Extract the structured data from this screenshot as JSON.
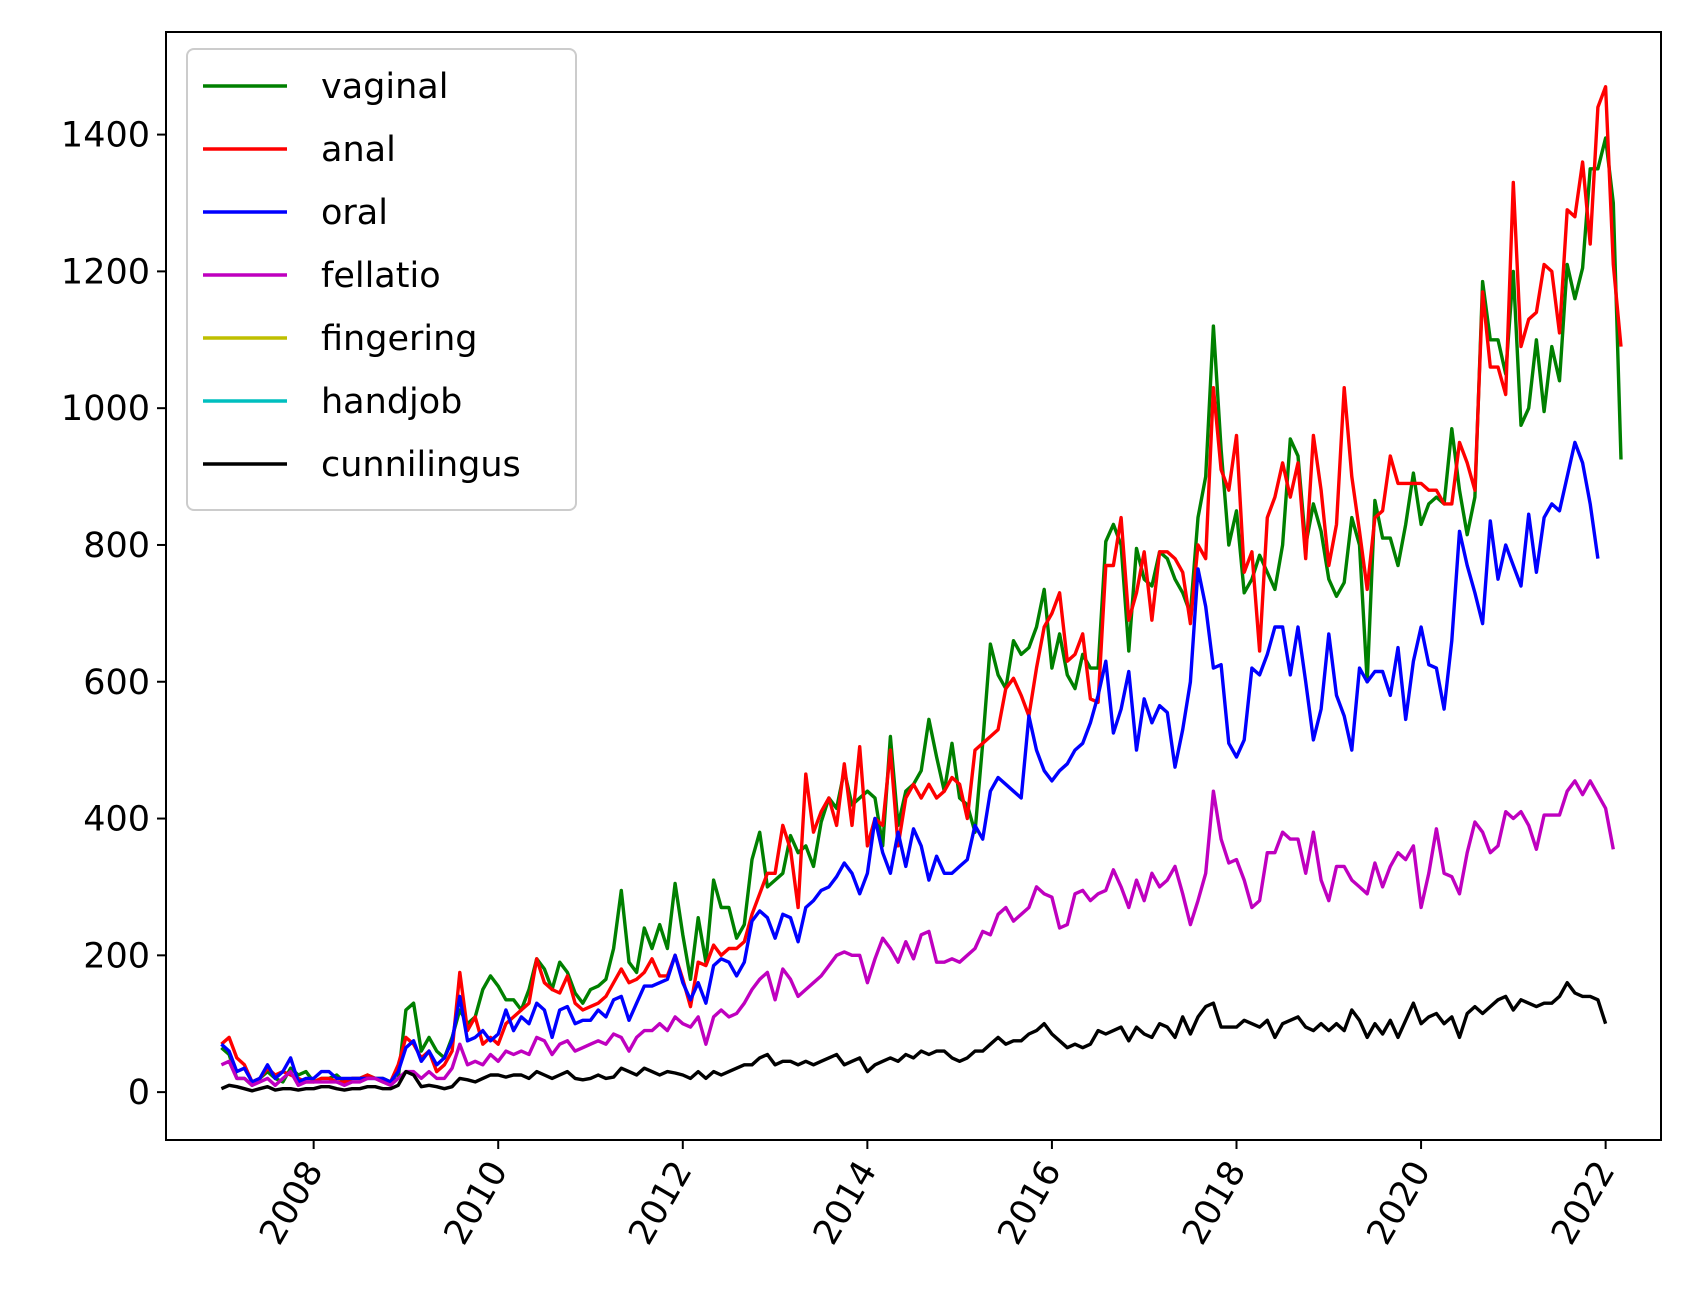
{
  "chart_data": {
    "type": "line",
    "title": "",
    "xlabel": "",
    "ylabel": "",
    "x_start": "2007-01",
    "x_step": "month",
    "xlim": [
      2006.4,
      2022.6
    ],
    "ylim": [
      -70,
      1550
    ],
    "grid": false,
    "legend_position": "top-left",
    "x_ticks": [
      2008,
      2010,
      2012,
      2014,
      2016,
      2018,
      2020,
      2022
    ],
    "x_tick_labels": [
      "2008",
      "2010",
      "2012",
      "2014",
      "2016",
      "2018",
      "2020",
      "2022"
    ],
    "y_ticks": [
      0,
      200,
      400,
      600,
      800,
      1000,
      1200,
      1400
    ],
    "y_tick_labels": [
      "0",
      "200",
      "400",
      "600",
      "800",
      "1000",
      "1200",
      "1400"
    ],
    "series": [
      {
        "name": "vaginal",
        "color": "#008000",
        "values": [
          65,
          55,
          20,
          20,
          10,
          20,
          30,
          20,
          15,
          35,
          25,
          30,
          15,
          20,
          20,
          25,
          15,
          20,
          20,
          25,
          20,
          20,
          15,
          20,
          120,
          130,
          60,
          80,
          60,
          50,
          80,
          120,
          100,
          110,
          150,
          170,
          155,
          135,
          135,
          120,
          150,
          195,
          180,
          150,
          190,
          175,
          145,
          130,
          150,
          155,
          165,
          210,
          295,
          190,
          175,
          240,
          210,
          245,
          210,
          305,
          230,
          165,
          255,
          190,
          310,
          270,
          270,
          225,
          245,
          340,
          380,
          300,
          310,
          320,
          375,
          350,
          360,
          330,
          395,
          430,
          415,
          470,
          420,
          430,
          440,
          430,
          360,
          520,
          390,
          440,
          450,
          470,
          545,
          490,
          440,
          510,
          430,
          420,
          380,
          510,
          655,
          610,
          590,
          660,
          640,
          650,
          680,
          735,
          620,
          670,
          610,
          590,
          640,
          620,
          620,
          805,
          830,
          800,
          645,
          795,
          750,
          740,
          790,
          780,
          750,
          730,
          700,
          840,
          900,
          1120,
          940,
          800,
          850,
          730,
          750,
          785,
          760,
          735,
          800,
          955,
          930,
          800,
          860,
          820,
          750,
          725,
          745,
          840,
          800,
          600,
          865,
          810,
          810,
          770,
          830,
          905,
          830,
          860,
          870,
          860,
          970,
          880,
          815,
          870,
          1185,
          1100,
          1100,
          1050,
          1200,
          975,
          1000,
          1100,
          995,
          1090,
          1040,
          1210,
          1160,
          1205,
          1350,
          1350,
          1395,
          1300,
          925
        ]
      },
      {
        "name": "anal",
        "color": "#ff0000",
        "values": [
          70,
          80,
          50,
          40,
          15,
          20,
          35,
          25,
          30,
          25,
          20,
          15,
          15,
          20,
          20,
          15,
          15,
          20,
          20,
          25,
          20,
          15,
          15,
          40,
          80,
          70,
          50,
          60,
          30,
          40,
          60,
          175,
          90,
          110,
          70,
          80,
          70,
          100,
          110,
          120,
          130,
          195,
          160,
          150,
          145,
          170,
          130,
          120,
          125,
          130,
          140,
          160,
          180,
          160,
          165,
          175,
          195,
          170,
          170,
          200,
          165,
          125,
          190,
          185,
          215,
          200,
          210,
          210,
          220,
          260,
          290,
          320,
          320,
          390,
          355,
          270,
          465,
          380,
          410,
          430,
          390,
          480,
          390,
          505,
          360,
          400,
          390,
          500,
          360,
          430,
          450,
          430,
          450,
          430,
          440,
          460,
          450,
          400,
          500,
          510,
          520,
          530,
          590,
          605,
          580,
          550,
          620,
          680,
          700,
          730,
          630,
          640,
          670,
          575,
          570,
          770,
          770,
          840,
          690,
          730,
          790,
          690,
          790,
          790,
          780,
          760,
          685,
          800,
          780,
          1030,
          910,
          880,
          960,
          760,
          790,
          645,
          840,
          870,
          920,
          870,
          920,
          780,
          960,
          880,
          770,
          830,
          1030,
          900,
          820,
          735,
          840,
          850,
          930,
          890,
          890,
          890,
          890,
          880,
          880,
          860,
          860,
          950,
          920,
          880,
          1170,
          1060,
          1060,
          1020,
          1330,
          1090,
          1130,
          1140,
          1210,
          1200,
          1110,
          1290,
          1280,
          1360,
          1240,
          1440,
          1470,
          1210,
          1090
        ]
      },
      {
        "name": "oral",
        "color": "#0000ff",
        "values": [
          70,
          60,
          30,
          35,
          15,
          20,
          40,
          20,
          30,
          50,
          15,
          20,
          20,
          30,
          30,
          20,
          20,
          20,
          20,
          20,
          20,
          20,
          15,
          30,
          65,
          75,
          45,
          60,
          40,
          50,
          75,
          140,
          75,
          80,
          90,
          75,
          85,
          120,
          90,
          110,
          100,
          130,
          120,
          80,
          120,
          125,
          100,
          105,
          105,
          120,
          110,
          135,
          140,
          105,
          130,
          155,
          155,
          160,
          165,
          200,
          160,
          135,
          160,
          130,
          185,
          195,
          190,
          170,
          190,
          250,
          265,
          255,
          225,
          260,
          255,
          220,
          270,
          280,
          295,
          300,
          315,
          335,
          320,
          290,
          320,
          400,
          350,
          320,
          380,
          330,
          385,
          360,
          310,
          345,
          320,
          320,
          330,
          340,
          390,
          370,
          440,
          460,
          450,
          440,
          430,
          550,
          500,
          470,
          455,
          470,
          480,
          500,
          510,
          540,
          580,
          630,
          525,
          560,
          615,
          500,
          575,
          540,
          565,
          555,
          475,
          530,
          600,
          765,
          710,
          620,
          625,
          510,
          490,
          515,
          620,
          610,
          640,
          680,
          680,
          610,
          680,
          600,
          515,
          560,
          670,
          580,
          550,
          500,
          620,
          600,
          615,
          615,
          580,
          650,
          545,
          630,
          680,
          625,
          620,
          560,
          660,
          820,
          770,
          730,
          685,
          835,
          750,
          800,
          770,
          740,
          845,
          760,
          840,
          860,
          850,
          900,
          950,
          920,
          860,
          780
        ]
      },
      {
        "name": "fellatio",
        "color": "#bf00bf",
        "values": [
          40,
          45,
          20,
          20,
          10,
          15,
          20,
          10,
          20,
          30,
          10,
          15,
          15,
          15,
          15,
          15,
          10,
          15,
          15,
          20,
          20,
          15,
          10,
          20,
          30,
          30,
          20,
          30,
          20,
          20,
          35,
          70,
          40,
          45,
          40,
          55,
          45,
          60,
          55,
          60,
          55,
          80,
          75,
          55,
          70,
          75,
          60,
          65,
          70,
          75,
          70,
          85,
          80,
          60,
          80,
          90,
          90,
          100,
          90,
          110,
          100,
          95,
          110,
          70,
          110,
          120,
          110,
          115,
          130,
          150,
          165,
          175,
          135,
          180,
          165,
          140,
          150,
          160,
          170,
          185,
          200,
          205,
          200,
          200,
          160,
          195,
          225,
          210,
          190,
          220,
          195,
          230,
          235,
          190,
          190,
          195,
          190,
          200,
          210,
          235,
          230,
          260,
          270,
          250,
          260,
          270,
          300,
          290,
          285,
          240,
          245,
          290,
          295,
          280,
          290,
          295,
          325,
          300,
          270,
          310,
          280,
          320,
          300,
          310,
          330,
          290,
          245,
          280,
          320,
          440,
          370,
          335,
          340,
          310,
          270,
          280,
          350,
          350,
          380,
          370,
          370,
          320,
          380,
          310,
          280,
          330,
          330,
          310,
          300,
          290,
          335,
          300,
          330,
          350,
          340,
          360,
          270,
          320,
          385,
          320,
          315,
          290,
          350,
          395,
          380,
          350,
          360,
          410,
          400,
          410,
          390,
          355,
          405,
          405,
          405,
          440,
          455,
          435,
          455,
          435,
          415,
          355
        ]
      },
      {
        "name": "fingering",
        "color": "#bfbf00",
        "values": []
      },
      {
        "name": "handjob",
        "color": "#00bfbf",
        "values": []
      },
      {
        "name": "cunnilingus",
        "color": "#000000",
        "values": [
          5,
          10,
          8,
          5,
          2,
          5,
          8,
          3,
          5,
          5,
          3,
          5,
          5,
          8,
          8,
          5,
          3,
          5,
          5,
          8,
          8,
          5,
          5,
          10,
          30,
          25,
          8,
          10,
          8,
          5,
          8,
          20,
          18,
          15,
          20,
          25,
          25,
          22,
          25,
          25,
          20,
          30,
          25,
          20,
          25,
          30,
          20,
          18,
          20,
          25,
          20,
          22,
          35,
          30,
          25,
          35,
          30,
          25,
          30,
          28,
          25,
          20,
          30,
          20,
          30,
          25,
          30,
          35,
          40,
          40,
          50,
          55,
          40,
          45,
          45,
          40,
          45,
          40,
          45,
          50,
          55,
          40,
          45,
          50,
          30,
          40,
          45,
          50,
          45,
          55,
          50,
          60,
          55,
          60,
          60,
          50,
          45,
          50,
          60,
          60,
          70,
          80,
          70,
          75,
          75,
          85,
          90,
          100,
          85,
          75,
          65,
          70,
          65,
          70,
          90,
          85,
          90,
          95,
          75,
          95,
          85,
          80,
          100,
          95,
          80,
          110,
          85,
          110,
          125,
          130,
          95,
          95,
          95,
          105,
          100,
          95,
          105,
          80,
          100,
          105,
          110,
          95,
          90,
          100,
          90,
          100,
          90,
          120,
          105,
          80,
          100,
          85,
          105,
          80,
          105,
          130,
          100,
          110,
          115,
          100,
          110,
          80,
          115,
          125,
          115,
          125,
          135,
          140,
          120,
          135,
          130,
          125,
          130,
          130,
          140,
          160,
          145,
          140,
          140,
          135,
          100
        ]
      }
    ]
  }
}
